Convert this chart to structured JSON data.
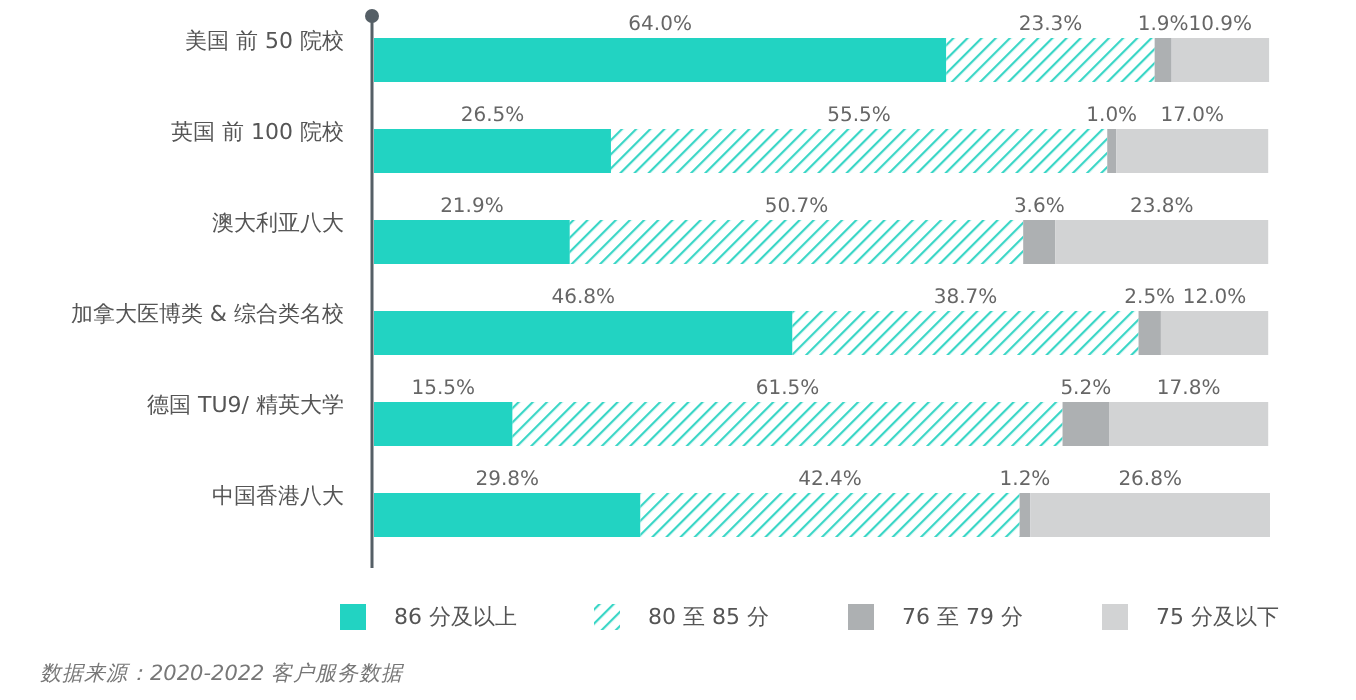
{
  "chart_data": {
    "type": "bar",
    "orientation": "horizontal",
    "stacked": true,
    "legend": "bottom",
    "categories": [
      "美国 前 50 院校",
      "英国 前 100 院校",
      "澳大利亚八大",
      "加拿大医博类 & 综合类名校",
      "德国 TU9/ 精英大学",
      "中国香港八大"
    ],
    "series": [
      {
        "name": "86 分及以上",
        "color": "#22d3c2",
        "values": [
          64.0,
          26.5,
          21.9,
          46.8,
          15.5,
          29.8
        ],
        "value_labels": [
          "64.0%",
          "26.5%",
          "21.9%",
          "46.8%",
          "15.5%",
          "29.8%"
        ]
      },
      {
        "name": "80 至 85 分",
        "color": "#3ad6c6",
        "values": [
          23.3,
          55.5,
          50.7,
          38.7,
          61.5,
          42.4
        ],
        "value_labels": [
          "23.3%",
          "55.5%",
          "50.7%",
          "38.7%",
          "61.5%",
          "42.4%"
        ]
      },
      {
        "name": "76 至 79 分",
        "color": "#adb0b2",
        "values": [
          1.9,
          1.0,
          3.6,
          2.5,
          5.2,
          1.2
        ],
        "value_labels": [
          "1.9%",
          "1.0%",
          "3.6%",
          "2.5%",
          "5.2%",
          "1.2%"
        ]
      },
      {
        "name": "75 分及以下",
        "color": "#d2d3d4",
        "values": [
          10.9,
          17.0,
          23.8,
          12.0,
          17.8,
          26.8
        ],
        "value_labels": [
          "10.9%",
          "17.0%",
          "23.8%",
          "12.0%",
          "17.8%",
          "26.8%"
        ]
      }
    ],
    "annotations": [
      "数据来源：2020-2022 客户服务数据"
    ]
  }
}
